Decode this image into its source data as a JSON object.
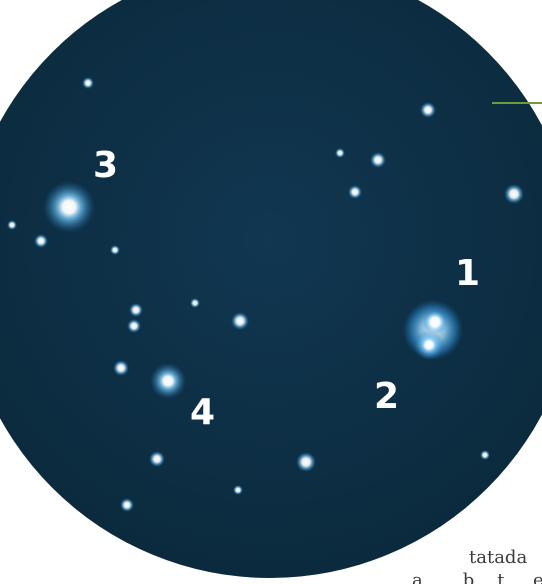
{
  "scene": {
    "description_colors": {
      "sky": "#0f3349",
      "sky_edge": "#0b2a3d",
      "rule": "#6f9a3b",
      "star_core": "#ffffff",
      "star_glow": "#6cc4ff"
    },
    "markers": [
      {
        "label": "1"
      },
      {
        "label": "2"
      },
      {
        "label": "3"
      },
      {
        "label": "4"
      }
    ],
    "caption": {
      "line1": "tatada",
      "line2": "a       b    t     e      d"
    }
  }
}
